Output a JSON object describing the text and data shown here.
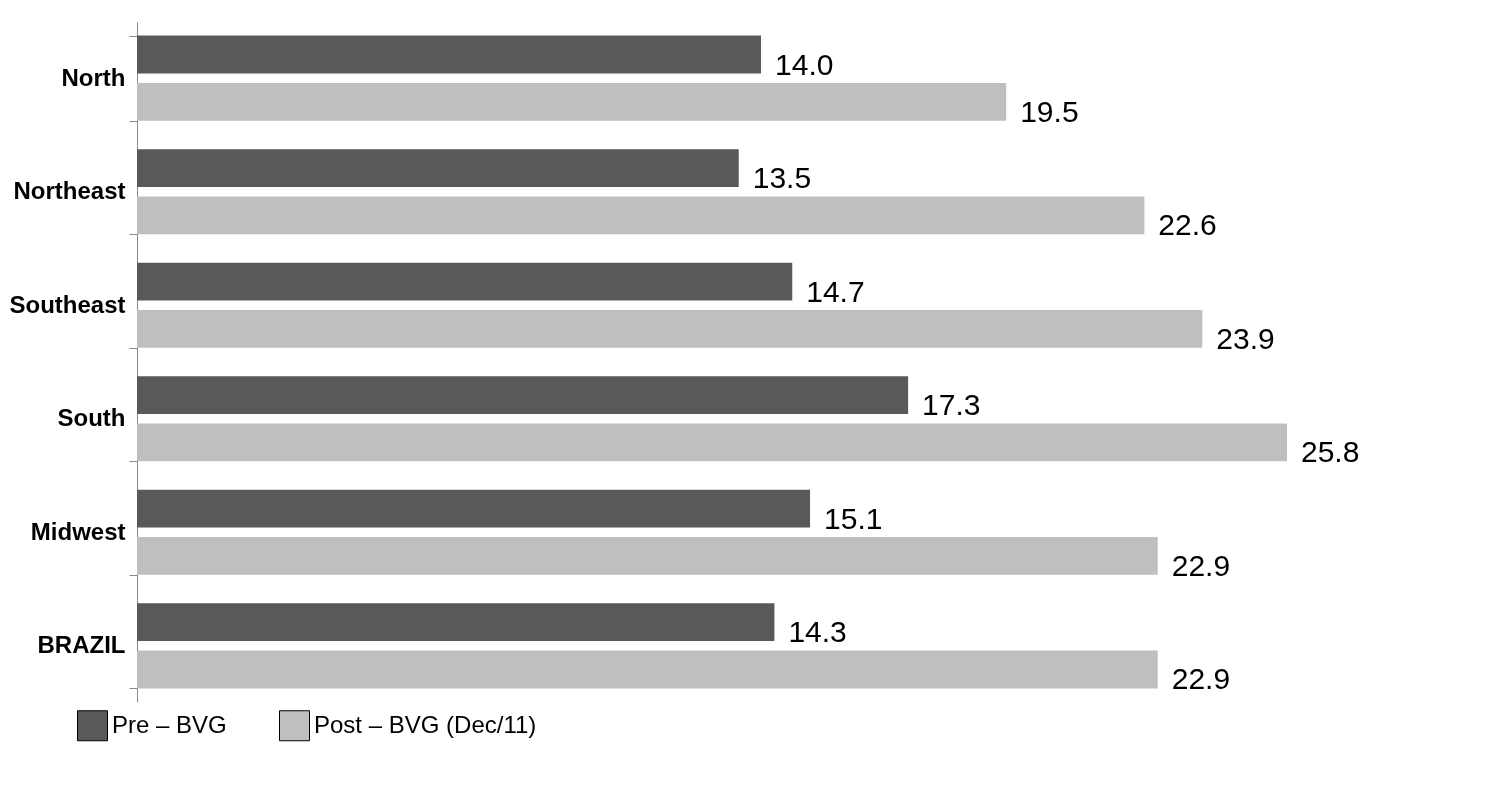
{
  "chart_data": {
    "type": "bar",
    "orientation": "horizontal",
    "categories": [
      "North",
      "Northeast",
      "Southeast",
      "South",
      "Midwest",
      "BRAZIL"
    ],
    "series": [
      {
        "name": "Pre – BVG",
        "color": "#595959",
        "values": [
          14.0,
          13.5,
          14.7,
          17.3,
          15.1,
          14.3
        ],
        "value_labels": [
          "14.0",
          "13.5",
          "14.7",
          "17.3",
          "15.1",
          "14.3"
        ]
      },
      {
        "name": "Post – BVG (Dec/11)",
        "color": "#bfbfbf",
        "values": [
          19.5,
          22.6,
          23.9,
          25.8,
          22.9,
          22.9
        ],
        "value_labels": [
          "19.5",
          "22.6",
          "23.9",
          "25.8",
          "22.9",
          "22.9"
        ]
      }
    ],
    "legend": "bottom left",
    "grid": false
  }
}
